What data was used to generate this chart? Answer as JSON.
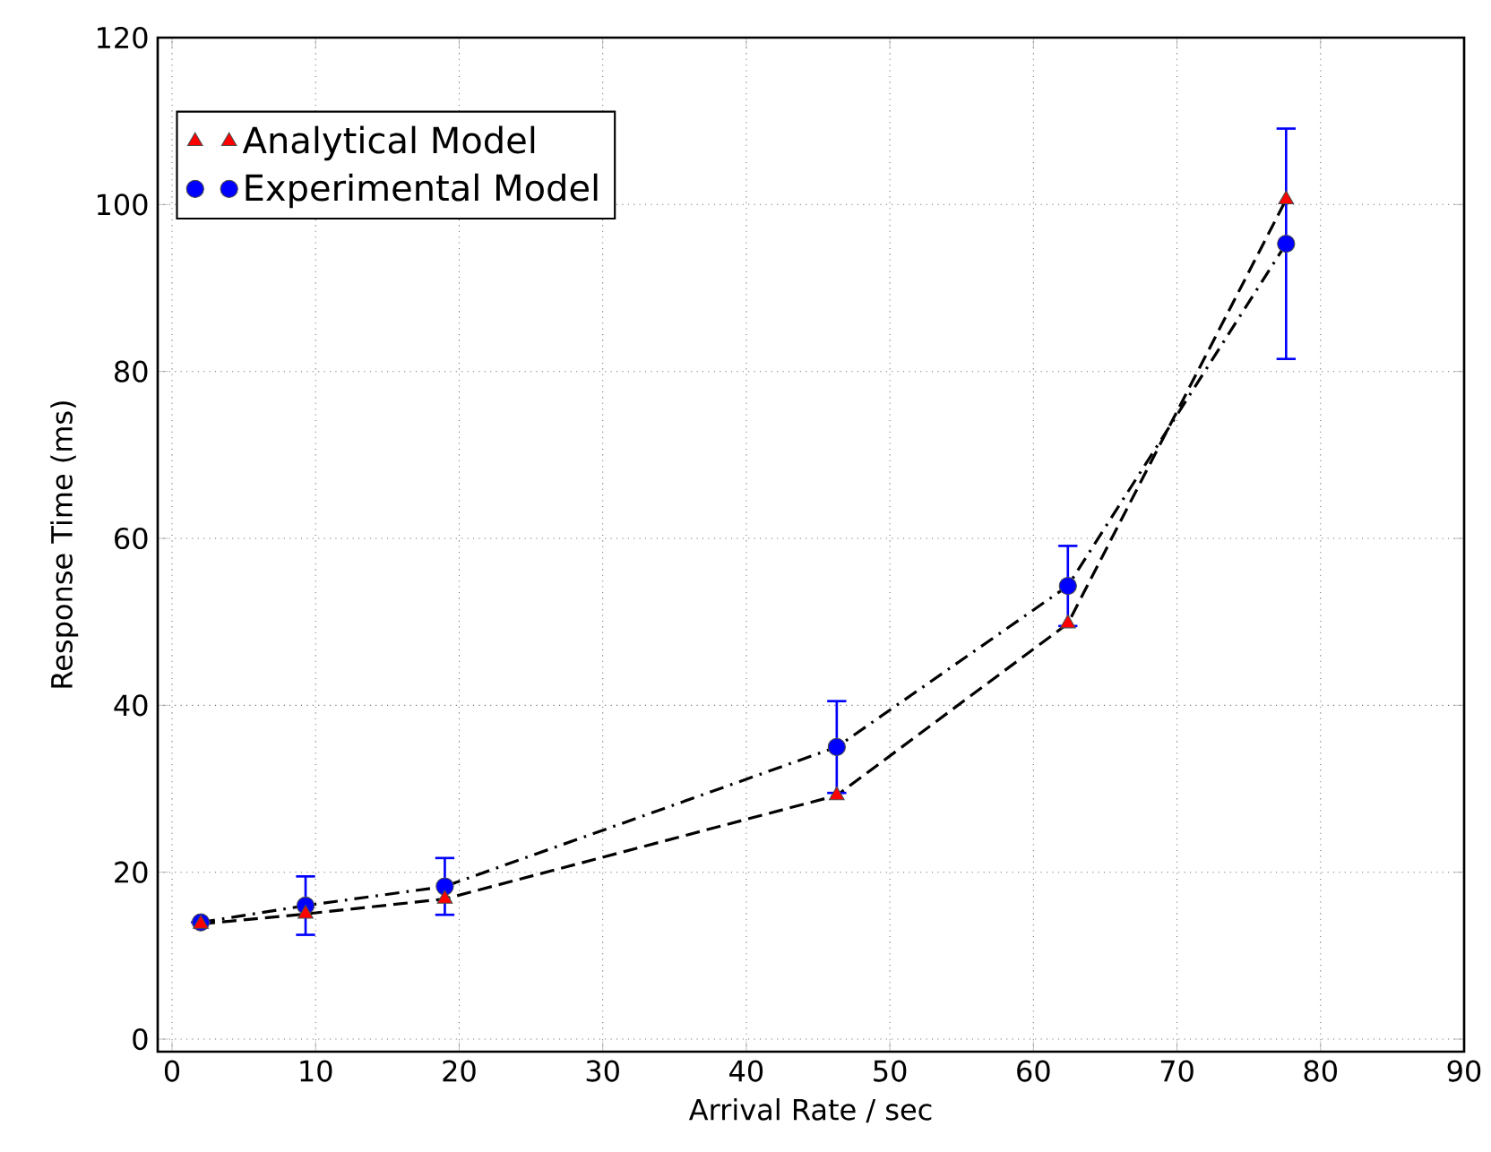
{
  "chart_data": {
    "type": "scatter",
    "xlabel": "Arrival Rate / sec",
    "ylabel": "Response Time (ms)",
    "x": [
      2,
      9.3,
      19,
      46.3,
      62.4,
      77.6
    ],
    "series": [
      {
        "name": "Analytical Model",
        "type": "scatter",
        "color": "#ff0000",
        "marker": "triangle",
        "values": [
          13.8,
          15,
          16.8,
          29.2,
          49.8,
          100.6
        ]
      },
      {
        "name": "Experimental Model",
        "type": "scatter",
        "color": "#0000ff",
        "marker": "circle",
        "values": [
          14,
          16,
          18.3,
          35,
          54.3,
          95.3
        ],
        "errors": [
          null,
          3.5,
          3.4,
          5.5,
          4.8,
          13.8
        ]
      },
      {
        "type": "line",
        "color": "#000000",
        "line_style": "dashed",
        "marker": "none",
        "values": [
          13.8,
          15,
          16.8,
          29.2,
          49.8,
          100.6
        ]
      },
      {
        "type": "line",
        "color": "#000000",
        "line_style": "dashdot",
        "marker": "none",
        "values": [
          14,
          16,
          18.3,
          35,
          54.3,
          95.3
        ]
      }
    ],
    "xlim": [
      -1,
      90
    ],
    "ylim": [
      -1.5,
      120
    ],
    "xticks": [
      0,
      10,
      20,
      30,
      40,
      50,
      60,
      70,
      80,
      90
    ],
    "yticks": [
      0,
      20,
      40,
      60,
      80,
      100,
      120
    ],
    "grid": true,
    "legend": "top left"
  }
}
